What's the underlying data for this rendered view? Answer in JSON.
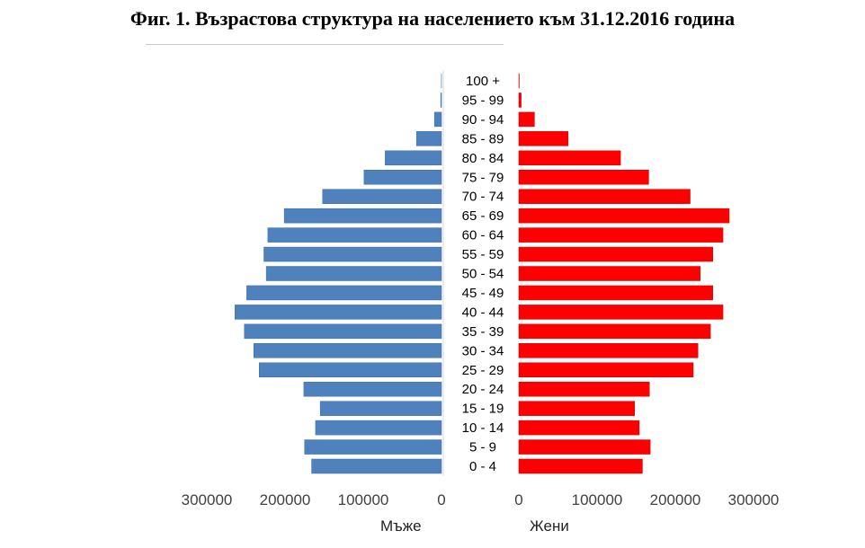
{
  "title": "Фиг. 1. Възрастова структура на населението към 31.12.2016 година",
  "colors": {
    "male": "#4F81BD",
    "female": "#FF0000",
    "male_stroke": "#3A6CA8",
    "female_stroke": "#D00000"
  },
  "chart_data": {
    "type": "bar",
    "orientation": "horizontal-population-pyramid",
    "categories": [
      "0 - 4",
      "5 - 9",
      "10 - 14",
      "15 - 19",
      "20 - 24",
      "25 - 29",
      "30 - 34",
      "35 - 39",
      "40 - 44",
      "45 - 49",
      "50 - 54",
      "55 - 59",
      "60 - 64",
      "65 - 69",
      "70 - 74",
      "75 - 79",
      "80 - 84",
      "85 - 89",
      "90 - 94",
      "95 - 99",
      "100 +"
    ],
    "series": [
      {
        "name": "Мъже",
        "values": [
          166000,
          175000,
          161000,
          155000,
          176000,
          233000,
          240000,
          252000,
          264000,
          249000,
          224000,
          227000,
          222000,
          201000,
          152000,
          99000,
          72000,
          32000,
          9000,
          1000,
          100
        ]
      },
      {
        "name": "Жени",
        "values": [
          158000,
          168000,
          154000,
          148000,
          167000,
          223000,
          229000,
          245000,
          261000,
          248000,
          232000,
          248000,
          261000,
          269000,
          219000,
          166000,
          130000,
          63000,
          20000,
          3000,
          500
        ]
      }
    ],
    "xlabel_left": "Мъже",
    "xlabel_right": "Жени",
    "left_ticks": [
      "300000",
      "200000",
      "100000",
      "0"
    ],
    "right_ticks": [
      "0",
      "100000",
      "200000",
      "300000"
    ],
    "xlim": [
      0,
      300000
    ],
    "grid": false,
    "legend": "none"
  }
}
